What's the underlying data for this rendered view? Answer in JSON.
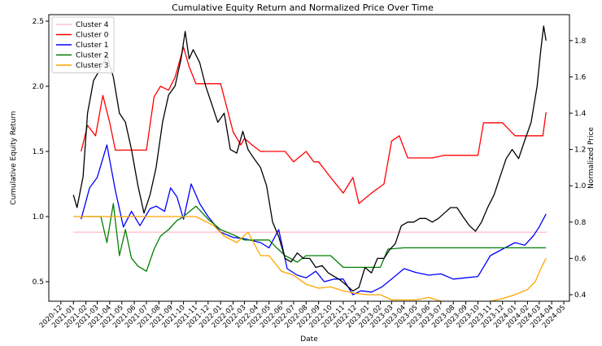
{
  "chart_data": {
    "type": "line",
    "title": "Cumulative Equity Return and Normalized Price Over Time",
    "xlabel": "Date",
    "ylabel_left": "Cumulative Equity Return",
    "ylabel_right": "Normalized Price",
    "xlim": [
      "2020-11-01",
      "2024-05-15"
    ],
    "ylim_left": [
      0.35,
      2.55
    ],
    "ylim_right": [
      0.364,
      1.943
    ],
    "yticks_left": [
      0.5,
      1.0,
      1.5,
      2.0,
      2.5
    ],
    "yticks_left_labels": [
      "0.5",
      "1.0",
      "1.5",
      "2.0",
      "2.5"
    ],
    "yticks_right": [
      0.4,
      0.6,
      0.8,
      1.0,
      1.2,
      1.4,
      1.6,
      1.8
    ],
    "yticks_right_labels": [
      "0.4",
      "0.6",
      "0.8",
      "1.0",
      "1.2",
      "1.4",
      "1.6",
      "1.8"
    ],
    "x_tick_labels": [
      "2020-12",
      "2021-01",
      "2021-02",
      "2021-03",
      "2021-04",
      "2021-05",
      "2021-06",
      "2021-07",
      "2021-08",
      "2021-09",
      "2021-10",
      "2021-11",
      "2021-12",
      "2022-01",
      "2022-02",
      "2022-03",
      "2022-04",
      "2022-05",
      "2022-06",
      "2022-07",
      "2022-08",
      "2022-09",
      "2022-10",
      "2022-11",
      "2022-12",
      "2023-01",
      "2023-02",
      "2023-03",
      "2023-04",
      "2023-05",
      "2023-06",
      "2023-07",
      "2023-08",
      "2023-09",
      "2023-10",
      "2023-11",
      "2023-12",
      "2024-01",
      "2024-02",
      "2024-03",
      "2024-04",
      "2024-05"
    ],
    "legend_position": "top-left",
    "grid": false,
    "series": [
      {
        "name": "Cluster 4",
        "color": "#ffc0cb",
        "axis": "left",
        "x": [
          "2021-01-01",
          "2021-01-20",
          "2024-03-20"
        ],
        "y": [
          0.88,
          0.88,
          0.88
        ]
      },
      {
        "name": "Cluster 0",
        "color": "#ff0000",
        "axis": "left",
        "x": [
          "2021-01-20",
          "2021-02-05",
          "2021-02-25",
          "2021-03-15",
          "2021-04-01",
          "2021-04-15",
          "2021-05-15",
          "2021-07-01",
          "2021-07-20",
          "2021-08-05",
          "2021-08-25",
          "2021-09-10",
          "2021-10-01",
          "2021-10-15",
          "2021-11-01",
          "2021-11-25",
          "2021-12-15",
          "2022-01-01",
          "2022-02-01",
          "2022-02-20",
          "2022-03-01",
          "2022-03-20",
          "2022-04-10",
          "2022-05-01",
          "2022-06-10",
          "2022-07-01",
          "2022-08-01",
          "2022-08-20",
          "2022-09-01",
          "2022-10-01",
          "2022-11-01",
          "2022-11-25",
          "2022-12-10",
          "2023-01-10",
          "2023-02-10",
          "2023-03-01",
          "2023-03-20",
          "2023-04-10",
          "2023-06-10",
          "2023-07-10",
          "2023-08-10",
          "2023-10-01",
          "2023-10-15",
          "2023-12-01",
          "2024-01-01",
          "2024-02-15",
          "2024-03-10",
          "2024-03-18"
        ],
        "y": [
          1.5,
          1.7,
          1.62,
          1.93,
          1.72,
          1.51,
          1.51,
          1.51,
          1.92,
          2.0,
          1.97,
          2.07,
          2.3,
          2.15,
          2.02,
          2.02,
          2.02,
          2.02,
          1.65,
          1.55,
          1.6,
          1.55,
          1.5,
          1.5,
          1.5,
          1.42,
          1.5,
          1.42,
          1.42,
          1.3,
          1.18,
          1.3,
          1.1,
          1.18,
          1.25,
          1.58,
          1.62,
          1.45,
          1.45,
          1.47,
          1.47,
          1.47,
          1.72,
          1.72,
          1.62,
          1.62,
          1.62,
          1.8
        ]
      },
      {
        "name": "Cluster 1",
        "color": "#0000ff",
        "axis": "left",
        "x": [
          "2021-01-20",
          "2021-02-10",
          "2021-03-01",
          "2021-03-25",
          "2021-04-15",
          "2021-05-05",
          "2021-05-25",
          "2021-06-15",
          "2021-07-10",
          "2021-07-25",
          "2021-08-15",
          "2021-08-30",
          "2021-09-15",
          "2021-10-01",
          "2021-10-20",
          "2021-11-10",
          "2021-12-01",
          "2022-01-01",
          "2022-02-01",
          "2022-03-01",
          "2022-04-10",
          "2022-05-01",
          "2022-05-25",
          "2022-06-15",
          "2022-07-10",
          "2022-08-01",
          "2022-08-25",
          "2022-09-15",
          "2022-10-10",
          "2022-11-01",
          "2022-11-25",
          "2022-12-15",
          "2023-01-10",
          "2023-02-05",
          "2023-03-01",
          "2023-04-01",
          "2023-05-01",
          "2023-06-01",
          "2023-07-01",
          "2023-08-01",
          "2023-09-01",
          "2023-10-01",
          "2023-11-01",
          "2023-12-01",
          "2024-01-01",
          "2024-01-25",
          "2024-02-15",
          "2024-03-01",
          "2024-03-18"
        ],
        "y": [
          0.98,
          1.22,
          1.3,
          1.55,
          1.2,
          0.92,
          1.04,
          0.93,
          1.06,
          1.08,
          1.04,
          1.22,
          1.15,
          0.98,
          1.25,
          1.1,
          1.0,
          0.88,
          0.84,
          0.83,
          0.8,
          0.76,
          0.9,
          0.6,
          0.55,
          0.53,
          0.58,
          0.5,
          0.52,
          0.52,
          0.4,
          0.43,
          0.42,
          0.46,
          0.52,
          0.6,
          0.57,
          0.55,
          0.56,
          0.52,
          0.53,
          0.54,
          0.7,
          0.75,
          0.8,
          0.78,
          0.85,
          0.92,
          1.02
        ]
      },
      {
        "name": "Cluster 2",
        "color": "#008000",
        "axis": "left",
        "x": [
          "2021-01-20",
          "2021-03-10",
          "2021-03-25",
          "2021-04-10",
          "2021-04-25",
          "2021-05-10",
          "2021-05-25",
          "2021-06-10",
          "2021-07-01",
          "2021-07-20",
          "2021-08-05",
          "2021-08-25",
          "2021-09-15",
          "2021-10-01",
          "2021-11-01",
          "2021-12-01",
          "2022-01-01",
          "2022-02-01",
          "2022-03-01",
          "2022-04-01",
          "2022-05-01",
          "2022-05-20",
          "2022-06-10",
          "2022-07-10",
          "2022-08-01",
          "2022-09-01",
          "2022-10-01",
          "2022-11-01",
          "2022-12-01",
          "2023-01-01",
          "2023-02-01",
          "2023-02-20",
          "2023-04-01",
          "2023-05-01",
          "2023-06-01",
          "2023-07-01",
          "2023-08-01",
          "2023-09-01",
          "2023-10-01",
          "2023-11-01",
          "2023-12-01",
          "2024-01-01",
          "2024-02-01",
          "2024-03-18"
        ],
        "y": [
          1.0,
          1.0,
          0.8,
          1.1,
          0.7,
          0.9,
          0.68,
          0.62,
          0.58,
          0.75,
          0.85,
          0.9,
          0.97,
          1.0,
          1.08,
          0.98,
          0.9,
          0.86,
          0.82,
          0.82,
          0.82,
          0.76,
          0.7,
          0.65,
          0.7,
          0.7,
          0.7,
          0.61,
          0.61,
          0.61,
          0.61,
          0.75,
          0.76,
          0.76,
          0.76,
          0.76,
          0.76,
          0.76,
          0.76,
          0.76,
          0.76,
          0.76,
          0.76,
          0.76
        ]
      },
      {
        "name": "Cluster 3",
        "color": "#ffa500",
        "axis": "left",
        "x": [
          "2021-01-01",
          "2021-03-01",
          "2021-05-01",
          "2021-07-01",
          "2021-09-01",
          "2021-11-01",
          "2021-12-15",
          "2022-01-10",
          "2022-02-10",
          "2022-03-10",
          "2022-04-10",
          "2022-05-01",
          "2022-06-01",
          "2022-07-01",
          "2022-08-01",
          "2022-09-01",
          "2022-10-01",
          "2022-11-01",
          "2022-12-01",
          "2023-01-01",
          "2023-02-01",
          "2023-03-01",
          "2023-04-01",
          "2023-05-01",
          "2023-06-01",
          "2023-07-01",
          "2023-08-01",
          "2023-09-01",
          "2023-10-01",
          "2023-11-01",
          "2023-12-01",
          "2024-01-01",
          "2024-02-01",
          "2024-02-20",
          "2024-03-05",
          "2024-03-18"
        ],
        "y": [
          1.0,
          1.0,
          1.0,
          1.0,
          1.0,
          1.0,
          0.93,
          0.85,
          0.8,
          0.88,
          0.7,
          0.7,
          0.58,
          0.55,
          0.48,
          0.45,
          0.46,
          0.43,
          0.41,
          0.4,
          0.4,
          0.36,
          0.36,
          0.36,
          0.38,
          0.35,
          0.34,
          0.33,
          0.32,
          0.35,
          0.37,
          0.4,
          0.44,
          0.5,
          0.6,
          0.68
        ]
      },
      {
        "name": "Normalized Price",
        "color": "#000000",
        "axis": "right",
        "x": [
          "2021-01-01",
          "2021-01-10",
          "2021-01-25",
          "2021-02-05",
          "2021-02-20",
          "2021-03-10",
          "2021-03-25",
          "2021-04-10",
          "2021-04-25",
          "2021-05-10",
          "2021-05-25",
          "2021-06-10",
          "2021-06-25",
          "2021-07-10",
          "2021-07-25",
          "2021-08-10",
          "2021-08-25",
          "2021-09-10",
          "2021-09-25",
          "2021-10-05",
          "2021-10-15",
          "2021-10-25",
          "2021-11-10",
          "2021-11-25",
          "2021-12-10",
          "2021-12-25",
          "2022-01-10",
          "2022-01-25",
          "2022-02-10",
          "2022-02-25",
          "2022-03-10",
          "2022-03-25",
          "2022-04-10",
          "2022-04-25",
          "2022-05-10",
          "2022-05-25",
          "2022-06-10",
          "2022-06-25",
          "2022-07-10",
          "2022-07-25",
          "2022-08-10",
          "2022-08-25",
          "2022-09-10",
          "2022-09-25",
          "2022-10-10",
          "2022-10-25",
          "2022-11-10",
          "2022-11-25",
          "2022-12-10",
          "2022-12-25",
          "2023-01-10",
          "2023-01-25",
          "2023-02-10",
          "2023-02-25",
          "2023-03-10",
          "2023-03-25",
          "2023-04-10",
          "2023-04-25",
          "2023-05-10",
          "2023-05-25",
          "2023-06-10",
          "2023-06-25",
          "2023-07-10",
          "2023-07-25",
          "2023-08-10",
          "2023-08-25",
          "2023-09-10",
          "2023-09-25",
          "2023-10-10",
          "2023-10-25",
          "2023-11-10",
          "2023-11-25",
          "2023-12-10",
          "2023-12-25",
          "2024-01-10",
          "2024-01-25",
          "2024-02-10",
          "2024-02-25",
          "2024-03-05",
          "2024-03-12",
          "2024-03-18"
        ],
        "y": [
          0.95,
          0.88,
          1.05,
          1.4,
          1.58,
          1.65,
          1.72,
          1.6,
          1.4,
          1.35,
          1.2,
          1.0,
          0.85,
          0.95,
          1.1,
          1.35,
          1.5,
          1.55,
          1.7,
          1.85,
          1.7,
          1.75,
          1.68,
          1.55,
          1.45,
          1.35,
          1.4,
          1.2,
          1.18,
          1.3,
          1.2,
          1.15,
          1.1,
          1.0,
          0.8,
          0.72,
          0.6,
          0.58,
          0.63,
          0.6,
          0.6,
          0.55,
          0.56,
          0.52,
          0.5,
          0.48,
          0.45,
          0.42,
          0.44,
          0.55,
          0.52,
          0.6,
          0.6,
          0.65,
          0.68,
          0.78,
          0.8,
          0.8,
          0.82,
          0.82,
          0.8,
          0.82,
          0.85,
          0.88,
          0.88,
          0.83,
          0.78,
          0.75,
          0.8,
          0.88,
          0.95,
          1.05,
          1.15,
          1.2,
          1.15,
          1.25,
          1.35,
          1.55,
          1.75,
          1.88,
          1.8
        ]
      }
    ]
  }
}
